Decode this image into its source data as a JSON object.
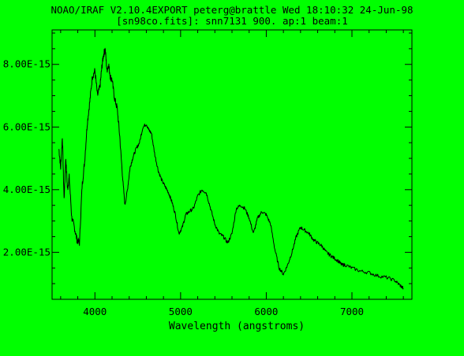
{
  "header": {
    "line1": "NOAO/IRAF V2.10.4EXPORT peterg@brattle Wed 18:10:32 24-Jun-98",
    "line2": "[sn98co.fits]: snn7131 900. ap:1 beam:1"
  },
  "colors": {
    "background": "#00ff00",
    "ink": "#000000"
  },
  "chart_data": {
    "type": "line",
    "title": "NOAO/IRAF V2.10.4EXPORT peterg@brattle Wed 18:10:32 24-Jun-98",
    "subtitle": "[sn98co.fits]: snn7131 900. ap:1 beam:1",
    "xlabel": "Wavelength (angstroms)",
    "ylabel": "",
    "xlim": [
      3500,
      7700
    ],
    "ylim": [
      5e-16,
      9.1e-15
    ],
    "xticks": [
      4000,
      5000,
      6000,
      7000
    ],
    "xtick_labels": [
      "4000",
      "5000",
      "6000",
      "7000"
    ],
    "yticks": [
      2e-15,
      4e-15,
      6e-15,
      8e-15
    ],
    "ytick_labels": [
      "2.00E-15",
      "4.00E-15",
      "6.00E-15",
      "8.00E-15"
    ],
    "grid": false,
    "series": [
      {
        "x": [
          3580,
          3600,
          3620,
          3640,
          3660,
          3680,
          3700,
          3730,
          3760,
          3790,
          3820,
          3850,
          3880,
          3910,
          3940,
          3970,
          4000,
          4030,
          4060,
          4080,
          4100,
          4120,
          4140,
          4160,
          4180,
          4200,
          4230,
          4260,
          4290,
          4320,
          4350,
          4380,
          4410,
          4440,
          4480,
          4520,
          4560,
          4600,
          4630,
          4660,
          4700,
          4740,
          4780,
          4820,
          4860,
          4900,
          4940,
          4980,
          5020,
          5060,
          5100,
          5150,
          5200,
          5250,
          5300,
          5350,
          5400,
          5450,
          5500,
          5550,
          5600,
          5650,
          5700,
          5750,
          5800,
          5850,
          5900,
          5950,
          6000,
          6050,
          6100,
          6150,
          6200,
          6250,
          6300,
          6350,
          6400,
          6450,
          6500,
          6550,
          6600,
          6650,
          6700,
          6750,
          6800,
          6850,
          6880,
          6920,
          7000,
          7100,
          7200,
          7300,
          7400,
          7500,
          7560,
          7600
        ],
        "values": [
          5.3e-15,
          4.7e-15,
          5.7e-15,
          3.7e-15,
          5e-15,
          4e-15,
          4.4e-15,
          3.1e-15,
          2.8e-15,
          2.4e-15,
          2.3e-15,
          4.1e-15,
          4.9e-15,
          6.1e-15,
          6.8e-15,
          7.6e-15,
          7.8e-15,
          7e-15,
          7.3e-15,
          7.9e-15,
          8.3e-15,
          8.5e-15,
          7.8e-15,
          8e-15,
          7.6e-15,
          7.5e-15,
          6.9e-15,
          6.6e-15,
          5.7e-15,
          4.5e-15,
          3.5e-15,
          4e-15,
          4.7e-15,
          5e-15,
          5.3e-15,
          5.5e-15,
          6e-15,
          6.1e-15,
          5.9e-15,
          5.8e-15,
          5.1e-15,
          4.6e-15,
          4.3e-15,
          4.1e-15,
          3.9e-15,
          3.6e-15,
          3.2e-15,
          2.6e-15,
          2.8e-15,
          3.2e-15,
          3.3e-15,
          3.4e-15,
          3.8e-15,
          4e-15,
          3.9e-15,
          3.4e-15,
          2.9e-15,
          2.6e-15,
          2.5e-15,
          2.3e-15,
          2.6e-15,
          3.4e-15,
          3.5e-15,
          3.4e-15,
          3.1e-15,
          2.6e-15,
          3.1e-15,
          3.3e-15,
          3.2e-15,
          2.9e-15,
          2.1e-15,
          1.5e-15,
          1.3e-15,
          1.6e-15,
          2e-15,
          2.5e-15,
          2.8e-15,
          2.7e-15,
          2.6e-15,
          2.4e-15,
          2.3e-15,
          2.2e-15,
          2e-15,
          1.9e-15,
          1.8e-15,
          1.7e-15,
          1.6e-15,
          1.6e-15,
          1.5e-15,
          1.4e-15,
          1.35e-15,
          1.25e-15,
          1.2e-15,
          1.1e-15,
          9.5e-16,
          8.5e-16
        ]
      }
    ]
  }
}
